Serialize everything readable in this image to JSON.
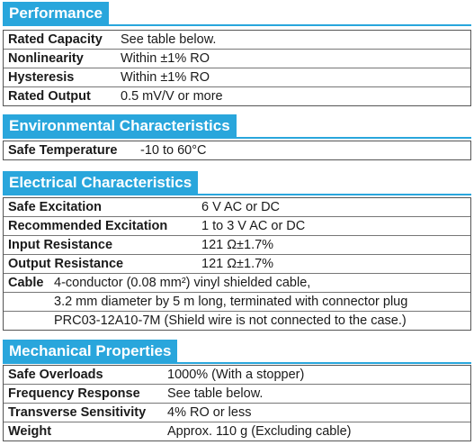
{
  "performance": {
    "title": "Performance",
    "rows": [
      {
        "label": "Rated Capacity",
        "value": "See table below."
      },
      {
        "label": "Nonlinearity",
        "value": "Within ±1% RO"
      },
      {
        "label": "Hysteresis",
        "value": "Within ±1% RO"
      },
      {
        "label": "Rated Output",
        "value": "0.5 mV/V or more"
      }
    ]
  },
  "environmental": {
    "title": "Environmental Characteristics",
    "rows": [
      {
        "label": "Safe Temperature",
        "value": "-10 to 60°C"
      }
    ]
  },
  "electrical": {
    "title": "Electrical Characteristics",
    "rows": [
      {
        "label": "Safe Excitation",
        "value": "6 V  AC or DC"
      },
      {
        "label": "Recommended Excitation",
        "value": "1 to 3 V  AC or DC"
      },
      {
        "label": "Input Resistance",
        "value": "121 Ω±1.7%"
      },
      {
        "label": "Output Resistance",
        "value": "121 Ω±1.7%"
      }
    ],
    "cable": {
      "label": "Cable",
      "lines": [
        "4-conductor (0.08 mm²) vinyl shielded cable,",
        "3.2 mm diameter by 5 m long, terminated with connector plug",
        "PRC03-12A10-7M (Shield wire is not connected to the case.)"
      ]
    }
  },
  "mechanical": {
    "title": "Mechanical Properties",
    "rows": [
      {
        "label": "Safe Overloads",
        "value": "1000% (With a stopper)"
      },
      {
        "label": "Frequency Response",
        "value": "See table below."
      },
      {
        "label": "Transverse Sensitivity",
        "value": "4% RO or less"
      },
      {
        "label": "Weight",
        "value": "Approx. 110 g (Excluding cable)"
      }
    ]
  },
  "colors": {
    "header_background": "#29a6dc",
    "header_text": "#ffffff",
    "body_text": "#1a1a1a",
    "border": "#555555"
  }
}
